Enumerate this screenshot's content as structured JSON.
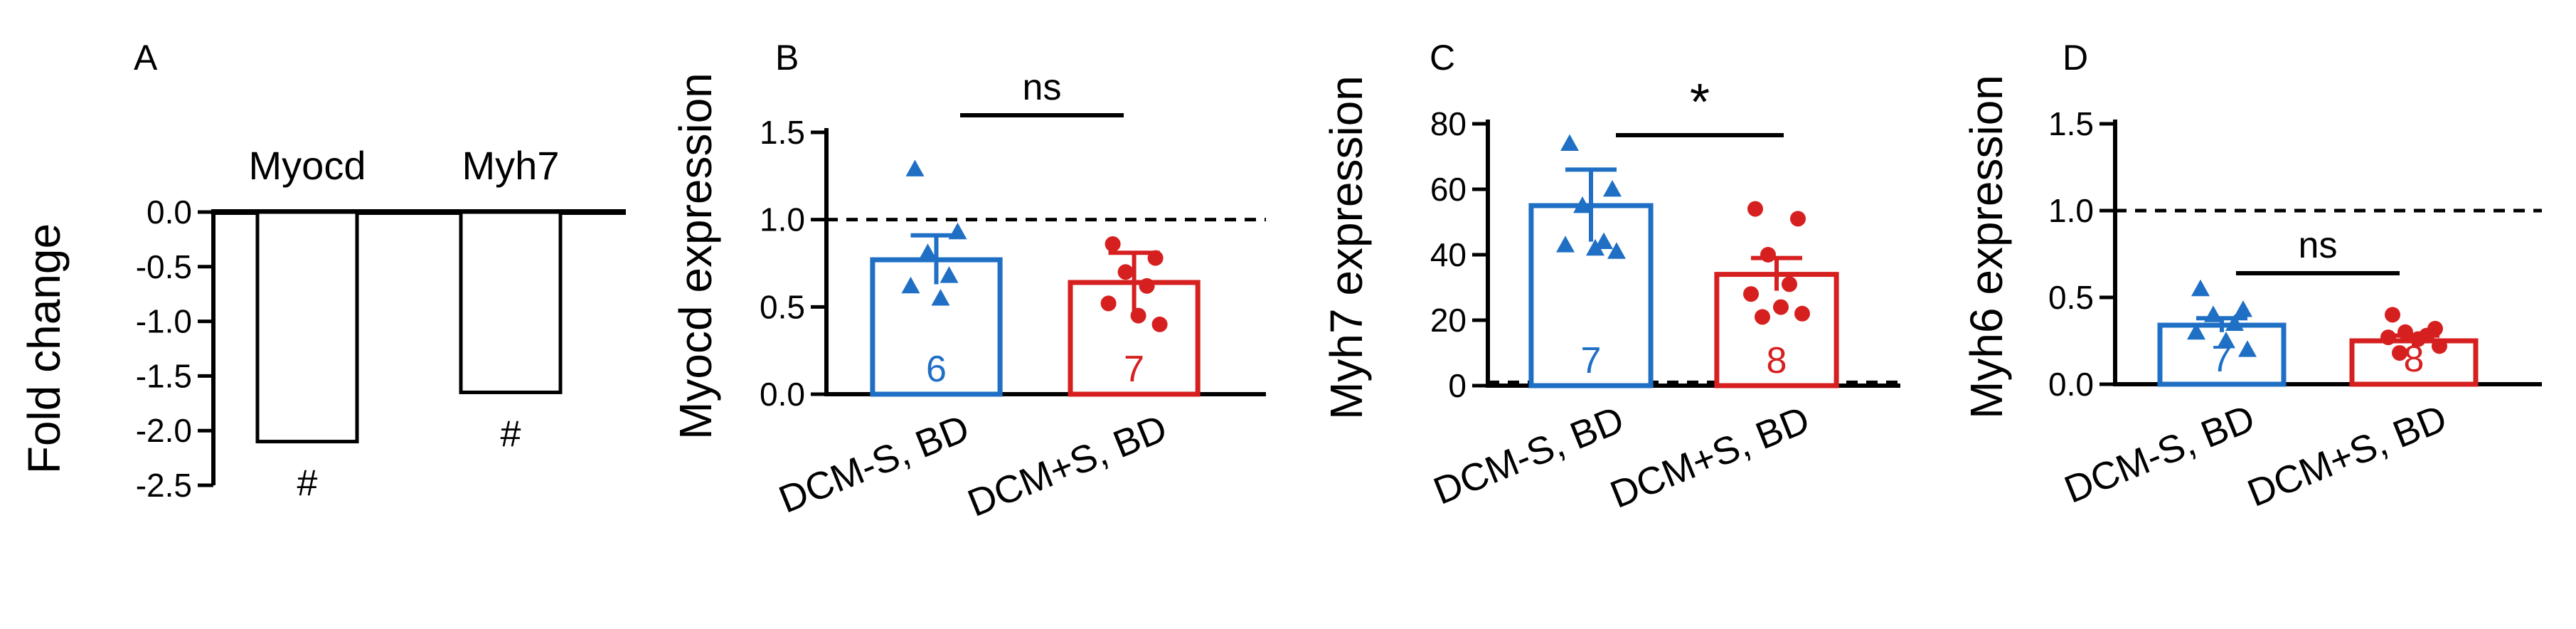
{
  "chart_data": [
    {
      "panel": "A",
      "type": "bar",
      "ylabel": "Fold change",
      "categories": [
        "Myocd",
        "Myh7"
      ],
      "values": [
        -2.1,
        -1.65
      ],
      "ylim": [
        -2.5,
        0.0
      ],
      "yticks": [
        "0.0",
        "-0.5",
        "-1.0",
        "-1.5",
        "-2.0",
        "-2.5"
      ],
      "annotations": [
        "#",
        "#"
      ],
      "fill": "#ffffff",
      "stroke": "#000000"
    },
    {
      "panel": "B",
      "type": "bar",
      "ylabel": "Myocd expression",
      "categories": [
        "DCM-S, BD",
        "DCM+S, BD"
      ],
      "values": [
        0.77,
        0.64
      ],
      "errors": [
        0.14,
        0.17
      ],
      "n_labels": [
        "6",
        "7"
      ],
      "ylim": [
        0.0,
        1.5
      ],
      "yticks": [
        "0.0",
        "0.5",
        "1.0",
        "1.5"
      ],
      "reference_line": 1.0,
      "significance": "ns",
      "points": [
        [
          1.29,
          0.93,
          0.81,
          0.68,
          0.62,
          0.55
        ],
        [
          0.86,
          0.78,
          0.7,
          0.62,
          0.52,
          0.45,
          0.4
        ]
      ],
      "colors": [
        "#1f6fc5",
        "#d62020"
      ]
    },
    {
      "panel": "C",
      "type": "bar",
      "ylabel": "Myh7 expression",
      "categories": [
        "DCM-S, BD",
        "DCM+S, BD"
      ],
      "values": [
        55,
        34
      ],
      "errors": [
        11,
        5
      ],
      "n_labels": [
        "7",
        "8"
      ],
      "ylim": [
        0,
        80
      ],
      "yticks": [
        "0",
        "20",
        "40",
        "60",
        "80"
      ],
      "reference_line": 1,
      "significance": "*",
      "points": [
        [
          74,
          60,
          55,
          44,
          43,
          42,
          41
        ],
        [
          54,
          51,
          40,
          31,
          28,
          24,
          22,
          21
        ]
      ],
      "colors": [
        "#1f6fc5",
        "#d62020"
      ]
    },
    {
      "panel": "D",
      "type": "bar",
      "ylabel": "Myh6 expression",
      "categories": [
        "DCM-S, BD",
        "DCM+S, BD"
      ],
      "values": [
        0.34,
        0.25
      ],
      "errors": [
        0.04,
        0.03
      ],
      "n_labels": [
        "7",
        "8"
      ],
      "ylim": [
        0.0,
        1.5
      ],
      "yticks": [
        "0.0",
        "0.5",
        "1.0",
        "1.5"
      ],
      "reference_line": 1.0,
      "significance": "ns",
      "points": [
        [
          0.55,
          0.43,
          0.4,
          0.35,
          0.3,
          0.25,
          0.2
        ],
        [
          0.4,
          0.32,
          0.3,
          0.28,
          0.27,
          0.26,
          0.22,
          0.18
        ]
      ],
      "colors": [
        "#1f6fc5",
        "#d62020"
      ]
    }
  ]
}
